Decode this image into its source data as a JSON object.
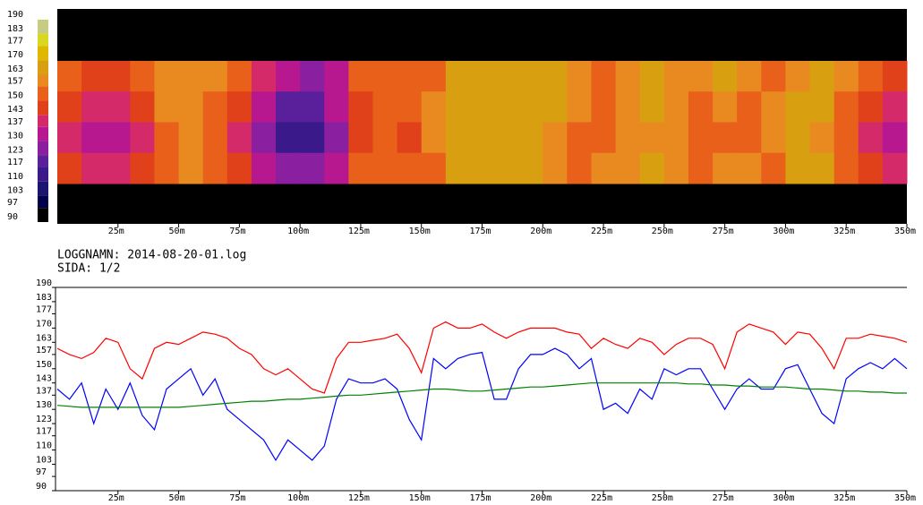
{
  "chart_data": [
    {
      "type": "heatmap",
      "x": [
        5,
        15,
        25,
        35,
        45,
        55,
        65,
        75,
        85,
        95,
        105,
        115,
        125,
        135,
        145,
        155,
        165,
        175,
        185,
        195,
        205,
        215,
        225,
        235,
        245,
        255,
        265,
        275,
        285,
        295,
        305,
        315,
        325,
        335,
        345
      ],
      "z": [
        [
          150,
          145,
          143,
          150,
          157,
          157,
          157,
          150,
          137,
          130,
          125,
          130,
          150,
          150,
          150,
          150,
          163,
          163,
          163,
          163,
          163,
          157,
          150,
          157,
          163,
          157,
          157,
          163,
          157,
          150,
          157,
          163,
          157,
          150,
          143
        ],
        [
          143,
          137,
          137,
          143,
          157,
          157,
          150,
          143,
          130,
          117,
          117,
          130,
          143,
          150,
          150,
          157,
          163,
          166,
          166,
          163,
          163,
          157,
          150,
          157,
          163,
          157,
          150,
          157,
          150,
          157,
          163,
          163,
          150,
          143,
          137
        ],
        [
          137,
          130,
          130,
          137,
          150,
          157,
          150,
          137,
          123,
          110,
          110,
          123,
          143,
          150,
          143,
          157,
          163,
          166,
          166,
          163,
          157,
          150,
          150,
          157,
          157,
          157,
          150,
          150,
          150,
          157,
          163,
          157,
          150,
          137,
          130
        ],
        [
          143,
          137,
          137,
          143,
          150,
          157,
          150,
          143,
          130,
          123,
          123,
          130,
          150,
          150,
          150,
          150,
          163,
          163,
          163,
          163,
          157,
          150,
          157,
          157,
          163,
          157,
          150,
          157,
          157,
          150,
          163,
          163,
          150,
          143,
          137
        ]
      ],
      "xlim": [
        0,
        350
      ],
      "xticks": [
        {
          "value": 25,
          "label": "25m"
        },
        {
          "value": 50,
          "label": "50m"
        },
        {
          "value": 75,
          "label": "75m"
        },
        {
          "value": 100,
          "label": "100m"
        },
        {
          "value": 125,
          "label": "125m"
        },
        {
          "value": 150,
          "label": "150m"
        },
        {
          "value": 175,
          "label": "175m"
        },
        {
          "value": 200,
          "label": "200m"
        },
        {
          "value": 225,
          "label": "225m"
        },
        {
          "value": 250,
          "label": "250m"
        },
        {
          "value": 275,
          "label": "275m"
        },
        {
          "value": 300,
          "label": "300m"
        },
        {
          "value": 325,
          "label": "325m"
        },
        {
          "value": 350,
          "label": "350m"
        }
      ],
      "colorbar_lim": [
        90,
        190
      ],
      "colorbar_ticks": [
        190,
        183,
        177,
        170,
        163,
        157,
        150,
        143,
        137,
        130,
        123,
        117,
        110,
        103,
        97,
        90
      ],
      "colors": [
        "#c8cc80",
        "#d8d820",
        "#e0b800",
        "#d8a010",
        "#e88a20",
        "#e8601a",
        "#e0401a",
        "#d42a6a",
        "#b8188f",
        "#8a1fa0",
        "#5a1f9a",
        "#3a1a8a",
        "#1c1470",
        "#00004a",
        "#000000"
      ]
    },
    {
      "type": "line",
      "x": [
        0,
        5,
        10,
        15,
        20,
        25,
        30,
        35,
        40,
        45,
        50,
        55,
        60,
        65,
        70,
        75,
        80,
        85,
        90,
        95,
        100,
        105,
        110,
        115,
        120,
        125,
        130,
        135,
        140,
        145,
        150,
        155,
        160,
        165,
        170,
        175,
        180,
        185,
        190,
        195,
        200,
        205,
        210,
        215,
        220,
        225,
        230,
        235,
        240,
        245,
        250,
        255,
        260,
        265,
        270,
        275,
        280,
        285,
        290,
        295,
        300,
        305,
        310,
        315,
        320,
        325,
        330,
        335,
        340,
        345,
        350
      ],
      "series": [
        {
          "color": "#ff0000",
          "values": [
            160,
            157,
            155,
            158,
            165,
            163,
            150,
            145,
            160,
            163,
            162,
            165,
            168,
            167,
            165,
            160,
            157,
            150,
            147,
            150,
            145,
            140,
            138,
            155,
            163,
            163,
            164,
            165,
            167,
            160,
            148,
            170,
            173,
            170,
            170,
            172,
            168,
            165,
            168,
            170,
            170,
            170,
            168,
            167,
            160,
            165,
            162,
            160,
            165,
            163,
            157,
            162,
            165,
            165,
            162,
            150,
            168,
            172,
            170,
            168,
            162,
            168,
            167,
            160,
            150,
            165,
            165,
            167,
            166,
            165,
            163
          ]
        },
        {
          "color": "#0000ff",
          "values": [
            140,
            135,
            143,
            123,
            140,
            130,
            143,
            127,
            120,
            140,
            145,
            150,
            137,
            145,
            130,
            125,
            120,
            115,
            105,
            115,
            110,
            105,
            112,
            135,
            145,
            143,
            143,
            145,
            140,
            125,
            115,
            155,
            150,
            155,
            157,
            158,
            135,
            135,
            150,
            157,
            157,
            160,
            157,
            150,
            155,
            130,
            133,
            128,
            140,
            135,
            150,
            147,
            150,
            150,
            140,
            130,
            140,
            145,
            140,
            140,
            150,
            152,
            140,
            128,
            123,
            145,
            150,
            153,
            150,
            155,
            150
          ]
        },
        {
          "color": "#008000",
          "values": [
            132,
            131.5,
            131,
            131,
            131,
            131,
            131,
            131,
            131,
            131,
            131,
            131.5,
            132,
            132.5,
            133,
            133.5,
            134,
            134,
            134.5,
            135,
            135,
            135.5,
            136,
            136.5,
            137,
            137,
            137.5,
            138,
            138.5,
            139,
            139.5,
            140,
            140,
            139.5,
            139,
            139,
            139.5,
            140,
            140.5,
            141,
            141,
            141.5,
            142,
            142.5,
            143,
            143,
            143,
            143,
            143,
            143,
            143,
            143,
            142.5,
            142.5,
            142,
            142,
            141.5,
            141.5,
            141,
            141,
            141,
            140.5,
            140,
            140,
            139.5,
            139,
            139,
            138.5,
            138.5,
            138,
            138
          ]
        }
      ],
      "xlim": [
        0,
        350
      ],
      "xticks": [
        {
          "value": 25,
          "label": "25m"
        },
        {
          "value": 50,
          "label": "50m"
        },
        {
          "value": 75,
          "label": "75m"
        },
        {
          "value": 100,
          "label": "100m"
        },
        {
          "value": 125,
          "label": "125m"
        },
        {
          "value": 150,
          "label": "150m"
        },
        {
          "value": 175,
          "label": "175m"
        },
        {
          "value": 200,
          "label": "200m"
        },
        {
          "value": 225,
          "label": "225m"
        },
        {
          "value": 250,
          "label": "250m"
        },
        {
          "value": 275,
          "label": "275m"
        },
        {
          "value": 300,
          "label": "300m"
        },
        {
          "value": 325,
          "label": "325m"
        },
        {
          "value": 350,
          "label": "350m"
        }
      ],
      "ylim": [
        90,
        190
      ],
      "yticks": [
        190,
        183,
        177,
        170,
        163,
        157,
        150,
        143,
        137,
        130,
        123,
        117,
        110,
        103,
        97,
        90
      ]
    }
  ],
  "log_name": "LOGGNAMN: 2014-08-20-01.log",
  "page": "SIDA: 1/2"
}
